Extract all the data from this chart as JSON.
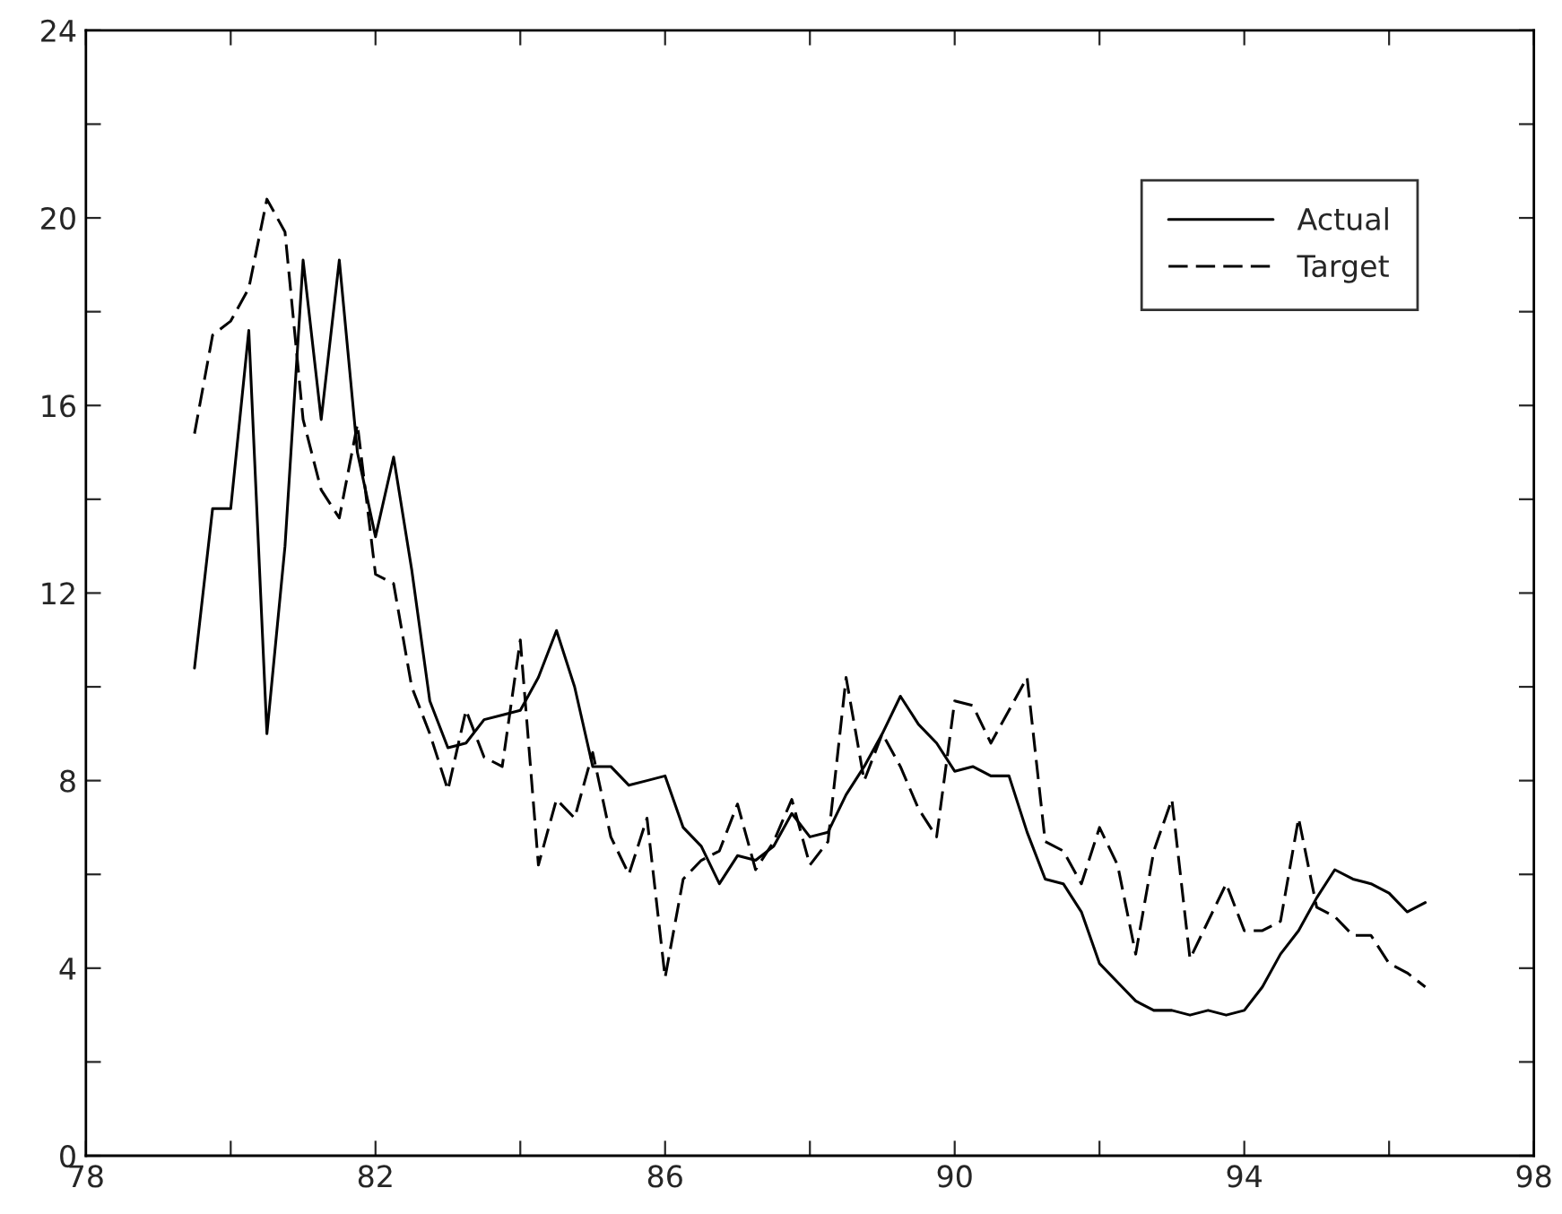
{
  "chart_data": {
    "type": "line",
    "x": [
      79.5,
      79.75,
      80,
      80.25,
      80.5,
      80.75,
      81,
      81.25,
      81.5,
      81.75,
      82,
      82.25,
      82.5,
      82.75,
      83,
      83.25,
      83.5,
      83.75,
      84,
      84.25,
      84.5,
      84.75,
      85,
      85.25,
      85.5,
      85.75,
      86,
      86.25,
      86.5,
      86.75,
      87,
      87.25,
      87.5,
      87.75,
      88,
      88.25,
      88.5,
      88.75,
      89,
      89.25,
      89.5,
      89.75,
      90,
      90.25,
      90.5,
      90.75,
      91,
      91.25,
      91.5,
      91.75,
      92,
      92.25,
      92.5,
      92.75,
      93,
      93.25,
      93.5,
      93.75,
      94,
      94.25,
      94.5,
      94.75,
      95,
      95.25,
      95.5,
      95.75,
      96,
      96.25,
      96.5
    ],
    "series": [
      {
        "name": "Actual",
        "color": "#000000",
        "line_style": "solid",
        "values": [
          10.4,
          13.8,
          13.8,
          17.6,
          9.0,
          13.0,
          19.1,
          15.7,
          19.1,
          15.0,
          13.2,
          14.9,
          12.5,
          9.7,
          8.7,
          8.8,
          9.3,
          9.4,
          9.5,
          10.2,
          11.2,
          10.0,
          8.3,
          8.3,
          7.9,
          8.0,
          8.1,
          7.0,
          6.6,
          5.8,
          6.4,
          6.3,
          6.6,
          7.3,
          6.8,
          6.9,
          7.7,
          8.3,
          9.0,
          9.8,
          9.2,
          8.8,
          8.2,
          8.3,
          8.1,
          8.1,
          6.9,
          5.9,
          5.8,
          5.2,
          4.1,
          3.7,
          3.3,
          3.1,
          3.1,
          3.0,
          3.1,
          3.0,
          3.1,
          3.6,
          4.3,
          4.8,
          5.5,
          6.1,
          5.9,
          5.8,
          5.6,
          5.2,
          5.4
        ]
      },
      {
        "name": "Target",
        "color": "#000000",
        "line_style": "dashed",
        "values": [
          15.4,
          17.5,
          17.8,
          18.5,
          20.4,
          19.7,
          15.7,
          14.2,
          13.6,
          15.6,
          12.4,
          12.2,
          10.0,
          9.0,
          7.8,
          9.5,
          8.5,
          8.3,
          11.0,
          6.2,
          7.6,
          7.2,
          8.6,
          6.8,
          6.0,
          7.2,
          3.8,
          5.9,
          6.3,
          6.5,
          7.5,
          6.1,
          6.7,
          7.6,
          6.2,
          6.7,
          10.2,
          8.0,
          9.0,
          8.3,
          7.4,
          6.8,
          9.7,
          9.6,
          8.8,
          9.5,
          10.2,
          6.7,
          6.5,
          5.8,
          7.0,
          6.2,
          4.3,
          6.5,
          7.6,
          4.2,
          5.0,
          5.8,
          4.8,
          4.8,
          5.0,
          7.2,
          5.3,
          5.1,
          4.7,
          4.7,
          4.1,
          3.9,
          3.6
        ]
      }
    ],
    "xlim": [
      78,
      98
    ],
    "ylim": [
      0,
      24
    ],
    "xticks": [
      78,
      {
        "value": 80,
        "label": null
      },
      82,
      {
        "value": 84,
        "label": null
      },
      86,
      {
        "value": 88,
        "label": null
      },
      90,
      {
        "value": 92,
        "label": null
      },
      94,
      {
        "value": 96,
        "label": null
      },
      98
    ],
    "yticks": [
      0,
      {
        "value": 2,
        "label": null
      },
      4,
      {
        "value": 6,
        "label": null
      },
      8,
      {
        "value": 10,
        "label": null
      },
      12,
      {
        "value": 14,
        "label": null
      },
      16,
      {
        "value": 18,
        "label": null
      },
      20,
      {
        "value": 22,
        "label": null
      },
      24
    ],
    "legend": "top right",
    "grid": false
  }
}
